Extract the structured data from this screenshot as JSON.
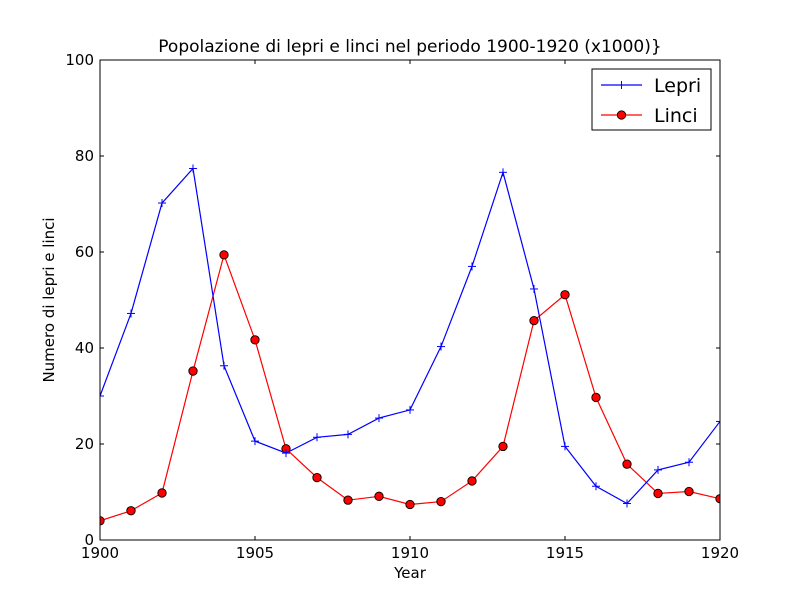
{
  "chart_data": {
    "type": "line",
    "title": "Popolazione di lepri e linci nel periodo 1900-1920 (x1000)}",
    "xlabel": "Year",
    "ylabel": "Numero di lepri e linci",
    "xlim": [
      1900,
      1920
    ],
    "ylim": [
      0,
      100
    ],
    "x_ticks": [
      1900,
      1905,
      1910,
      1915,
      1920
    ],
    "y_ticks": [
      0,
      20,
      40,
      60,
      80,
      100
    ],
    "grid": false,
    "legend_position": "top-right",
    "x": [
      1900,
      1901,
      1902,
      1903,
      1904,
      1905,
      1906,
      1907,
      1908,
      1909,
      1910,
      1911,
      1912,
      1913,
      1914,
      1915,
      1916,
      1917,
      1918,
      1919,
      1920
    ],
    "series": [
      {
        "name": "Lepri",
        "color": "#0000ff",
        "marker": "plus",
        "values": [
          30.0,
          47.2,
          70.2,
          77.4,
          36.3,
          20.6,
          18.1,
          21.4,
          22.0,
          25.4,
          27.1,
          40.3,
          57.0,
          76.6,
          52.3,
          19.5,
          11.2,
          7.6,
          14.6,
          16.2,
          24.7
        ]
      },
      {
        "name": "Linci",
        "color": "#ff0000",
        "marker": "circle",
        "values": [
          4.0,
          6.1,
          9.8,
          35.2,
          59.4,
          41.7,
          19.0,
          13.0,
          8.3,
          9.1,
          7.4,
          8.0,
          12.3,
          19.5,
          45.7,
          51.1,
          29.7,
          15.8,
          9.7,
          10.1,
          8.6
        ]
      }
    ]
  }
}
